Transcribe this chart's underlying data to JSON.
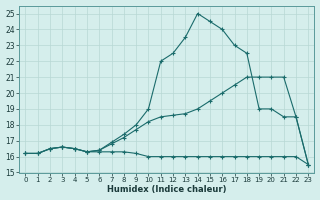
{
  "xlabel": "Humidex (Indice chaleur)",
  "background_color": "#d5eeec",
  "grid_color": "#b8d8d5",
  "line_color": "#1a6b6b",
  "xlim": [
    -0.5,
    23.5
  ],
  "ylim": [
    15,
    25.5
  ],
  "xticks": [
    0,
    1,
    2,
    3,
    4,
    5,
    6,
    7,
    8,
    9,
    10,
    11,
    12,
    13,
    14,
    15,
    16,
    17,
    18,
    19,
    20,
    21,
    22,
    23
  ],
  "yticks": [
    15,
    16,
    17,
    18,
    19,
    20,
    21,
    22,
    23,
    24,
    25
  ],
  "line1_x": [
    0,
    1,
    2,
    3,
    4,
    5,
    6,
    7,
    8,
    9,
    10,
    11,
    12,
    13,
    14,
    15,
    16,
    17,
    18,
    19,
    20,
    21,
    22,
    23
  ],
  "line1_y": [
    16.2,
    16.2,
    16.5,
    16.6,
    16.5,
    16.3,
    16.3,
    16.3,
    16.3,
    16.2,
    16.0,
    16.0,
    16.0,
    16.0,
    16.0,
    16.0,
    16.0,
    16.0,
    16.0,
    16.0,
    16.0,
    16.0,
    16.0,
    15.5
  ],
  "line2_x": [
    0,
    1,
    2,
    3,
    4,
    5,
    6,
    7,
    8,
    9,
    10,
    11,
    12,
    13,
    14,
    15,
    16,
    17,
    18,
    19,
    20,
    21,
    22,
    23
  ],
  "line2_y": [
    16.2,
    16.2,
    16.5,
    16.6,
    16.5,
    16.3,
    16.4,
    16.8,
    17.2,
    17.7,
    18.2,
    18.5,
    18.6,
    18.7,
    19.0,
    19.5,
    20.0,
    20.5,
    21.0,
    21.0,
    21.0,
    21.0,
    18.5,
    15.5
  ],
  "line3_x": [
    0,
    1,
    2,
    3,
    4,
    5,
    6,
    7,
    8,
    9,
    10,
    11,
    12,
    13,
    14,
    15,
    16,
    17,
    18,
    19,
    20,
    21,
    22,
    23
  ],
  "line3_y": [
    16.2,
    16.2,
    16.5,
    16.6,
    16.5,
    16.3,
    16.4,
    16.9,
    17.4,
    18.0,
    19.0,
    22.0,
    22.5,
    23.5,
    25.0,
    24.5,
    24.0,
    23.0,
    22.5,
    19.0,
    19.0,
    18.5,
    18.5,
    15.5
  ]
}
